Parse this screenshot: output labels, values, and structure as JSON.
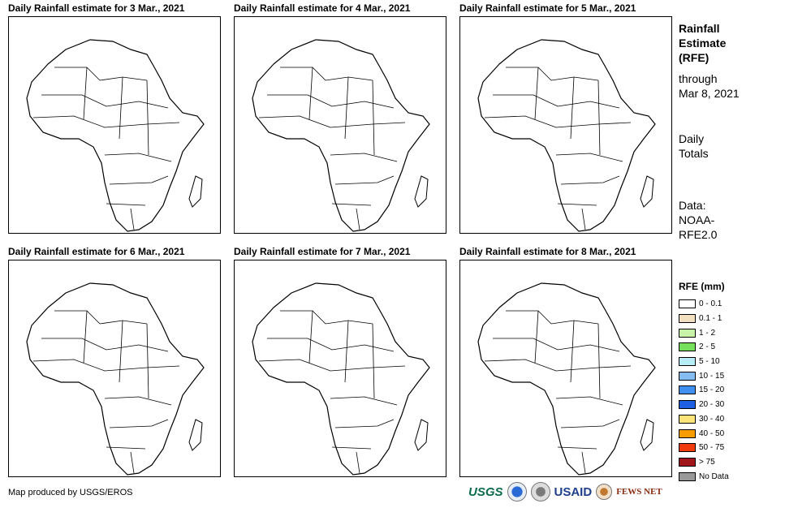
{
  "panels": [
    {
      "title": "Daily Rainfall estimate for 3 Mar., 2021"
    },
    {
      "title": "Daily Rainfall estimate for 4 Mar., 2021"
    },
    {
      "title": "Daily Rainfall estimate for 5 Mar., 2021"
    },
    {
      "title": "Daily Rainfall estimate for 6 Mar., 2021"
    },
    {
      "title": "Daily Rainfall estimate for 7 Mar., 2021"
    },
    {
      "title": "Daily Rainfall estimate for 8 Mar., 2021"
    }
  ],
  "side": {
    "title_line1": "Rainfall",
    "title_line2": "Estimate",
    "title_line3": "(RFE)",
    "through_line1": "through",
    "through_line2": "Mar 8, 2021",
    "daily_line1": "Daily",
    "daily_line2": "Totals",
    "data_line1": "Data:",
    "data_line2": "NOAA-",
    "data_line3": "RFE2.0"
  },
  "legend": {
    "title": "RFE (mm)",
    "items": [
      {
        "label": "0 - 0.1",
        "color": "#ffffff"
      },
      {
        "label": "0.1 - 1",
        "color": "#f2dfc0"
      },
      {
        "label": "1 - 2",
        "color": "#c8f3a9"
      },
      {
        "label": "2 - 5",
        "color": "#76e05c"
      },
      {
        "label": "5 - 10",
        "color": "#b8ecf6"
      },
      {
        "label": "10 - 15",
        "color": "#86bdf0"
      },
      {
        "label": "15 - 20",
        "color": "#3f8ff0"
      },
      {
        "label": "20 - 30",
        "color": "#1d5fe0"
      },
      {
        "label": "30 - 40",
        "color": "#fce47a"
      },
      {
        "label": "40 - 50",
        "color": "#f59c00"
      },
      {
        "label": "50 - 75",
        "color": "#f03c10"
      },
      {
        "label": "> 75",
        "color": "#a0161a"
      },
      {
        "label": "No Data",
        "color": "#999999"
      }
    ]
  },
  "footer": {
    "credit": "Map produced by USGS/EROS"
  },
  "logos": {
    "usgs": "USGS",
    "usaid": "USAID",
    "fews": "FEWS NET"
  }
}
